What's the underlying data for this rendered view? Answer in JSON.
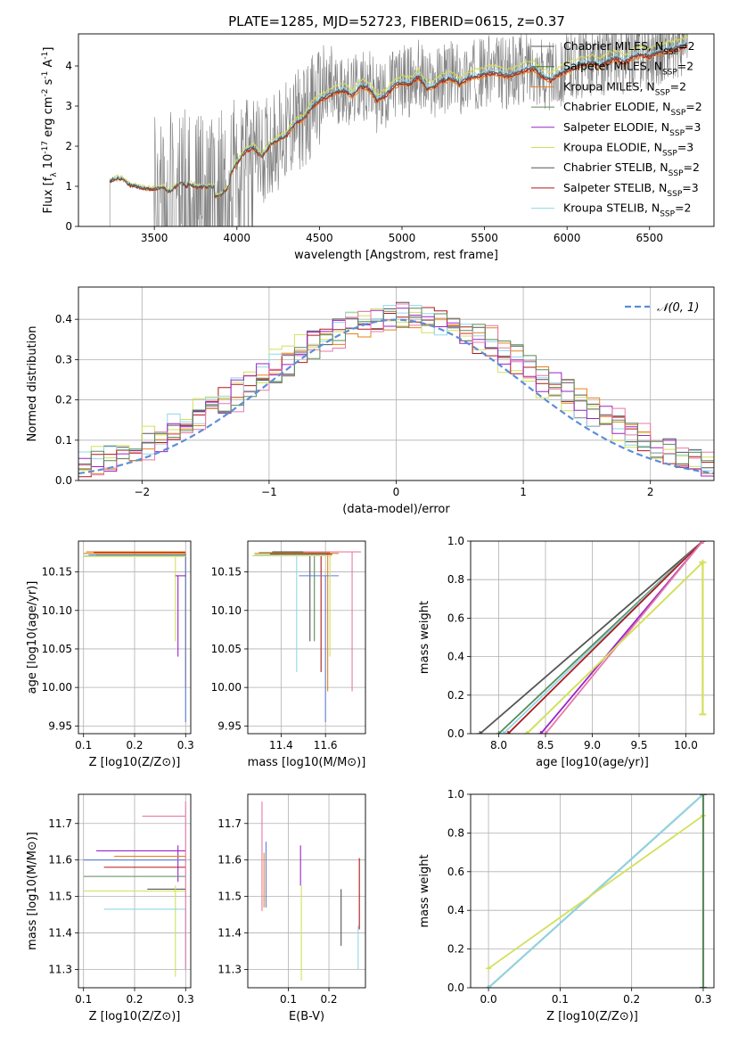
{
  "figure_title": "PLATE=1285, MJD=52723, FIBERID=0615, z=0.37",
  "colors": {
    "Chabrier MILES": "#555555",
    "Salpeter MILES": "#3d7a3d",
    "Kroupa MILES": "#e8801a",
    "Chabrier ELODIE": "#5a8a5a",
    "Salpeter ELODIE": "#9a22c8",
    "Kroupa ELODIE": "#d2e05a",
    "Chabrier STELIB": "#555555",
    "Salpeter STELIB": "#b01818",
    "Kroupa STELIB": "#8fd8e8",
    "data": "#808080",
    "gaussian": "#5b8ed8",
    "pink": "#e878a8",
    "blue": "#5b7fd8"
  },
  "chart_data": [
    {
      "type": "line",
      "id": "spectrum",
      "xlabel": "wavelength [Angstrom, rest frame]",
      "ylabel": "Flux [f_λ 10^-17 erg cm^-2 s^-1 A^-1]",
      "xlim": [
        3040,
        6890
      ],
      "ylim": [
        0,
        4.8
      ],
      "xticks": [
        3500,
        4000,
        4500,
        5000,
        5500,
        6000,
        6500
      ],
      "yticks": [
        0,
        1,
        2,
        3,
        4
      ],
      "grid": false,
      "legend_position": "top-right",
      "legend": [
        "Chabrier MILES, N_SSP=2",
        "Salpeter MILES, N_SSP=2",
        "Kroupa MILES, N_SSP=2",
        "Chabrier ELODIE, N_SSP=2",
        "Salpeter ELODIE, N_SSP=3",
        "Kroupa ELODIE, N_SSP=3",
        "Chabrier STELIB, N_SSP=2",
        "Salpeter STELIB, N_SSP=3",
        "Kroupa STELIB, N_SSP=2"
      ],
      "data_series": {
        "x": [
          3230,
          3260,
          3300,
          3350,
          3400,
          3450,
          3500,
          3550,
          3600,
          3650,
          3700,
          3750,
          3800,
          3850,
          3900,
          3950,
          4000,
          4050,
          4100,
          4150,
          4200,
          4250,
          4300,
          4350,
          4400,
          4450,
          4500,
          4550,
          4600,
          4650,
          4700,
          4750,
          4800,
          4850,
          4900,
          4950,
          5000,
          5050,
          5100,
          5150,
          5200,
          5250,
          5300,
          5350,
          5400,
          5450,
          5500,
          5550,
          5600,
          5650,
          5700,
          5750,
          5800,
          5850,
          5900,
          5950,
          6000,
          6050,
          6100,
          6150,
          6200,
          6250,
          6300,
          6350,
          6400,
          6450,
          6500,
          6550,
          6600,
          6650,
          6700,
          6730
        ],
        "y": [
          1.15,
          1.2,
          1.22,
          1.05,
          1.0,
          0.95,
          0.95,
          0.98,
          1.05,
          0.9,
          1.1,
          1.0,
          1.0,
          1.0,
          1.05,
          1.25,
          1.6,
          1.9,
          2.0,
          1.75,
          2.05,
          2.2,
          2.3,
          2.6,
          2.7,
          3.0,
          3.2,
          3.3,
          3.4,
          3.45,
          3.3,
          3.55,
          3.5,
          3.2,
          3.3,
          3.55,
          3.65,
          3.6,
          3.8,
          3.5,
          3.55,
          3.7,
          3.75,
          3.6,
          3.75,
          3.8,
          3.85,
          3.9,
          3.85,
          3.8,
          3.9,
          3.95,
          4.0,
          3.8,
          3.7,
          3.85,
          3.95,
          4.05,
          4.1,
          4.15,
          4.05,
          4.2,
          4.25,
          4.15,
          4.3,
          4.35,
          4.3,
          4.4,
          4.45,
          4.5,
          4.55,
          4.6
        ]
      },
      "models": [
        {
          "name": "Kroupa MILES",
          "color": "#e8801a",
          "scale": 0.97
        },
        {
          "name": "Kroupa ELODIE",
          "color": "#d2e05a",
          "scale": 1.03
        },
        {
          "name": "Salpeter STELIB",
          "color": "#b01818",
          "scale": 0.98
        },
        {
          "name": "Kroupa STELIB",
          "color": "#8fd8e8",
          "scale": 1.0
        },
        {
          "name": "Chabrier STELIB",
          "color": "#555555",
          "scale": 0.99
        }
      ]
    },
    {
      "type": "histogram",
      "id": "residuals",
      "xlabel": "(data-model)/error",
      "ylabel": "Normed distribution",
      "xlim": [
        -2.5,
        2.5
      ],
      "ylim": [
        0,
        0.48
      ],
      "xticks": [
        -2,
        -1,
        0,
        1,
        2
      ],
      "yticks": [
        0.0,
        0.1,
        0.2,
        0.3,
        0.4
      ],
      "grid": true,
      "legend_position": "top-right",
      "legend": [
        "𝒩(0, 1)"
      ],
      "bin_width": 0.1,
      "series": [
        {
          "color": "#555555",
          "offset": 0.06,
          "seed": 1
        },
        {
          "color": "#e8801a",
          "offset": 0.1,
          "seed": 2
        },
        {
          "color": "#d2e05a",
          "offset": -0.04,
          "seed": 3
        },
        {
          "color": "#b01818",
          "offset": 0.02,
          "seed": 4
        },
        {
          "color": "#8fd8e8",
          "offset": -0.02,
          "seed": 5
        },
        {
          "color": "#9a22c8",
          "offset": 0.04,
          "seed": 6
        },
        {
          "color": "#e878a8",
          "offset": 0.12,
          "seed": 7
        },
        {
          "color": "#5a8a5a",
          "offset": 0.08,
          "seed": 8
        }
      ]
    },
    {
      "type": "errorbar",
      "id": "age-vs-Z",
      "xlabel": "Z [log10(Z/Z⊙)]",
      "ylabel": "age  [log10(age/yr)]",
      "xlim": [
        0.09,
        0.31
      ],
      "ylim": [
        9.94,
        10.19
      ],
      "xticks": [
        0.1,
        0.2,
        0.3
      ],
      "yticks": [
        9.95,
        10.0,
        10.05,
        10.1,
        10.15
      ],
      "grid": true,
      "points": [
        {
          "x": 0.3,
          "y": 10.176,
          "xlo": 0.105,
          "xhi": 0.3,
          "ylo": 10.176,
          "yhi": 10.176,
          "color": "#e8801a"
        },
        {
          "x": 0.3,
          "y": 10.175,
          "xlo": 0.12,
          "xhi": 0.3,
          "ylo": 10.175,
          "yhi": 10.175,
          "color": "#b01818"
        },
        {
          "x": 0.3,
          "y": 10.174,
          "xlo": 0.1,
          "xhi": 0.3,
          "ylo": 10.0,
          "yhi": 10.174,
          "color": "#e8801a"
        },
        {
          "x": 0.3,
          "y": 10.172,
          "xlo": 0.11,
          "xhi": 0.3,
          "ylo": 9.955,
          "yhi": 10.172,
          "color": "#5b7fd8"
        },
        {
          "x": 0.3,
          "y": 10.172,
          "xlo": 0.125,
          "xhi": 0.3,
          "ylo": 10.172,
          "yhi": 10.172,
          "color": "#555555"
        },
        {
          "x": 0.3,
          "y": 10.171,
          "xlo": 0.1,
          "xhi": 0.3,
          "ylo": 10.171,
          "yhi": 10.171,
          "color": "#8fd8e8"
        },
        {
          "x": 0.28,
          "y": 10.17,
          "xlo": 0.1,
          "xhi": 0.3,
          "ylo": 10.06,
          "yhi": 10.17,
          "color": "#d2e05a"
        },
        {
          "x": 0.285,
          "y": 10.145,
          "xlo": 0.28,
          "xhi": 0.3,
          "ylo": 10.04,
          "yhi": 10.145,
          "color": "#9a22c8"
        }
      ]
    },
    {
      "type": "errorbar",
      "id": "age-vs-mass",
      "xlabel": "mass [log10(M/M⊙)]",
      "ylabel": "",
      "xlim": [
        11.25,
        11.78
      ],
      "ylim": [
        9.94,
        10.19
      ],
      "xticks": [
        11.4,
        11.6
      ],
      "yticks": [
        9.95,
        10.0,
        10.05,
        10.1,
        10.15
      ],
      "grid": true,
      "points": [
        {
          "x": 11.53,
          "y": 10.176,
          "xlo": 11.36,
          "xhi": 11.6,
          "ylo": 10.06,
          "yhi": 10.176,
          "color": "#555555"
        },
        {
          "x": 11.55,
          "y": 10.175,
          "xlo": 11.3,
          "xhi": 11.62,
          "ylo": 10.06,
          "yhi": 10.175,
          "color": "#5a8a5a"
        },
        {
          "x": 11.61,
          "y": 10.174,
          "xlo": 11.28,
          "xhi": 11.66,
          "ylo": 9.995,
          "yhi": 10.174,
          "color": "#e8801a"
        },
        {
          "x": 11.58,
          "y": 10.173,
          "xlo": 11.35,
          "xhi": 11.63,
          "ylo": 10.02,
          "yhi": 10.173,
          "color": "#b01818"
        },
        {
          "x": 11.47,
          "y": 10.172,
          "xlo": 11.28,
          "xhi": 11.6,
          "ylo": 10.02,
          "yhi": 10.172,
          "color": "#8fd8e8"
        },
        {
          "x": 11.72,
          "y": 10.176,
          "xlo": 11.5,
          "xhi": 11.76,
          "ylo": 9.995,
          "yhi": 10.176,
          "color": "#e878a8"
        },
        {
          "x": 11.6,
          "y": 10.145,
          "xlo": 11.48,
          "xhi": 11.66,
          "ylo": 9.955,
          "yhi": 10.145,
          "color": "#5b7fd8"
        },
        {
          "x": 11.62,
          "y": 10.171,
          "xlo": 11.27,
          "xhi": 11.63,
          "ylo": 10.04,
          "yhi": 10.171,
          "color": "#d2e05a"
        }
      ]
    },
    {
      "type": "line",
      "id": "massweight-vs-age",
      "xlabel": "age  [log10(age/yr)]",
      "ylabel": "mass weight",
      "xlim": [
        7.7,
        10.3
      ],
      "ylim": [
        0,
        1.0
      ],
      "xticks": [
        8.0,
        8.5,
        9.0,
        9.5,
        10.0
      ],
      "yticks": [
        0.0,
        0.2,
        0.4,
        0.6,
        0.8,
        1.0
      ],
      "grid": true,
      "series": [
        {
          "x": [
            7.8,
            10.18
          ],
          "y": [
            0.0,
            1.0
          ],
          "color": "#555555"
        },
        {
          "x": [
            8.0,
            10.18
          ],
          "y": [
            0.0,
            1.0
          ],
          "color": "#5a8a5a"
        },
        {
          "x": [
            8.05,
            10.18
          ],
          "y": [
            0.0,
            1.0
          ],
          "color": "#8fd8e8"
        },
        {
          "x": [
            8.1,
            10.18
          ],
          "y": [
            0.0,
            1.0
          ],
          "color": "#b01818"
        },
        {
          "x": [
            8.3,
            10.18
          ],
          "y": [
            0.0,
            0.89
          ],
          "color": "#d2e05a"
        },
        {
          "x": [
            8.45,
            10.18
          ],
          "y": [
            0.0,
            1.0
          ],
          "color": "#9a22c8"
        },
        {
          "x": [
            8.5,
            10.18
          ],
          "y": [
            0.0,
            1.0
          ],
          "color": "#e878a8"
        },
        {
          "x": [
            8.3,
            10.18
          ],
          "y": [
            0.0,
            0.89
          ],
          "color": "#d2e05a"
        }
      ],
      "vbar": {
        "x": 10.18,
        "y": [
          0.1,
          0.89
        ],
        "color": "#d2e05a"
      }
    },
    {
      "type": "errorbar",
      "id": "mass-vs-Z",
      "xlabel": "Z [log10(Z/Z⊙)]",
      "ylabel": "mass [log10(M/M⊙)]",
      "xlim": [
        0.09,
        0.31
      ],
      "ylim": [
        11.25,
        11.78
      ],
      "xticks": [
        0.1,
        0.2,
        0.3
      ],
      "yticks": [
        11.3,
        11.4,
        11.5,
        11.6,
        11.7
      ],
      "grid": true,
      "points": [
        {
          "x": 0.3,
          "y": 11.72,
          "xlo": 0.215,
          "xhi": 0.3,
          "ylo": 11.72,
          "yhi": 11.72,
          "color": "#e878a8"
        },
        {
          "x": 0.285,
          "y": 11.625,
          "xlo": 0.125,
          "xhi": 0.3,
          "ylo": 11.54,
          "yhi": 11.64,
          "color": "#9a22c8"
        },
        {
          "x": 0.3,
          "y": 11.61,
          "xlo": 0.16,
          "xhi": 0.3,
          "ylo": 11.61,
          "yhi": 11.61,
          "color": "#e8801a"
        },
        {
          "x": 0.3,
          "y": 11.6,
          "xlo": 0.1,
          "xhi": 0.3,
          "ylo": 11.6,
          "yhi": 11.6,
          "color": "#5b7fd8"
        },
        {
          "x": 0.3,
          "y": 11.58,
          "xlo": 0.14,
          "xhi": 0.3,
          "ylo": 11.58,
          "yhi": 11.58,
          "color": "#b01818"
        },
        {
          "x": 0.3,
          "y": 11.555,
          "xlo": 0.1,
          "xhi": 0.3,
          "ylo": 11.555,
          "yhi": 11.555,
          "color": "#5a8a5a"
        },
        {
          "x": 0.3,
          "y": 11.52,
          "xlo": 0.225,
          "xhi": 0.3,
          "ylo": 11.52,
          "yhi": 11.52,
          "color": "#555555"
        },
        {
          "x": 0.28,
          "y": 11.515,
          "xlo": 0.1,
          "xhi": 0.3,
          "ylo": 11.28,
          "yhi": 11.53,
          "color": "#d2e05a"
        },
        {
          "x": 0.3,
          "y": 11.465,
          "xlo": 0.14,
          "xhi": 0.3,
          "ylo": 11.3,
          "yhi": 11.465,
          "color": "#8fd8e8"
        },
        {
          "x": 0.3,
          "y": 11.7,
          "xlo": 0.3,
          "xhi": 0.3,
          "ylo": 11.3,
          "yhi": 11.76,
          "color": "#e878a8"
        }
      ]
    },
    {
      "type": "errorbar",
      "id": "mass-vs-EBV",
      "xlabel": "E(B-V)",
      "ylabel": "",
      "xlim": [
        0.0,
        0.29
      ],
      "ylim": [
        11.25,
        11.78
      ],
      "xticks": [
        0.1,
        0.2
      ],
      "yticks": [
        11.3,
        11.4,
        11.5,
        11.6,
        11.7
      ],
      "grid": true,
      "points": [
        {
          "x": 0.035,
          "y": 11.6,
          "xlo": 0.035,
          "xhi": 0.035,
          "ylo": 11.46,
          "yhi": 11.76,
          "color": "#e878a8"
        },
        {
          "x": 0.04,
          "y": 11.61,
          "xlo": 0.04,
          "xhi": 0.04,
          "ylo": 11.47,
          "yhi": 11.62,
          "color": "#e8801a"
        },
        {
          "x": 0.045,
          "y": 11.6,
          "xlo": 0.045,
          "xhi": 0.045,
          "ylo": 11.47,
          "yhi": 11.65,
          "color": "#5b7fd8"
        },
        {
          "x": 0.13,
          "y": 11.6,
          "xlo": 0.13,
          "xhi": 0.13,
          "ylo": 11.53,
          "yhi": 11.64,
          "color": "#9a22c8"
        },
        {
          "x": 0.132,
          "y": 11.5,
          "xlo": 0.132,
          "xhi": 0.132,
          "ylo": 11.27,
          "yhi": 11.53,
          "color": "#d2e05a"
        },
        {
          "x": 0.23,
          "y": 11.45,
          "xlo": 0.23,
          "xhi": 0.23,
          "ylo": 11.365,
          "yhi": 11.52,
          "color": "#555555"
        },
        {
          "x": 0.275,
          "y": 11.5,
          "xlo": 0.275,
          "xhi": 0.275,
          "ylo": 11.41,
          "yhi": 11.605,
          "color": "#b01818"
        },
        {
          "x": 0.272,
          "y": 11.4,
          "xlo": 0.272,
          "xhi": 0.272,
          "ylo": 11.3,
          "yhi": 11.42,
          "color": "#8fd8e8"
        }
      ]
    },
    {
      "type": "line",
      "id": "massweight-vs-Z",
      "xlabel": "Z [log10(Z/Z⊙)]",
      "ylabel": "mass weight",
      "xlim": [
        -0.025,
        0.315
      ],
      "ylim": [
        0,
        1.0
      ],
      "xticks": [
        0.0,
        0.1,
        0.2,
        0.3
      ],
      "yticks": [
        0.0,
        0.2,
        0.4,
        0.6,
        0.8,
        1.0
      ],
      "grid": true,
      "series": [
        {
          "x": [
            0.0,
            0.3
          ],
          "y": [
            0.0,
            1.0
          ],
          "color": "#555555"
        },
        {
          "x": [
            0.0,
            0.3
          ],
          "y": [
            0.0,
            1.0
          ],
          "color": "#5a8a5a"
        },
        {
          "x": [
            0.0,
            0.3
          ],
          "y": [
            0.0,
            1.0
          ],
          "color": "#8fd8e8"
        },
        {
          "x": [
            0.0,
            0.3
          ],
          "y": [
            0.1,
            0.89
          ],
          "color": "#d2e05a"
        }
      ],
      "vbar": {
        "x": 0.3,
        "y": [
          0.0,
          1.0
        ],
        "color": "#5a8a5a"
      }
    }
  ]
}
